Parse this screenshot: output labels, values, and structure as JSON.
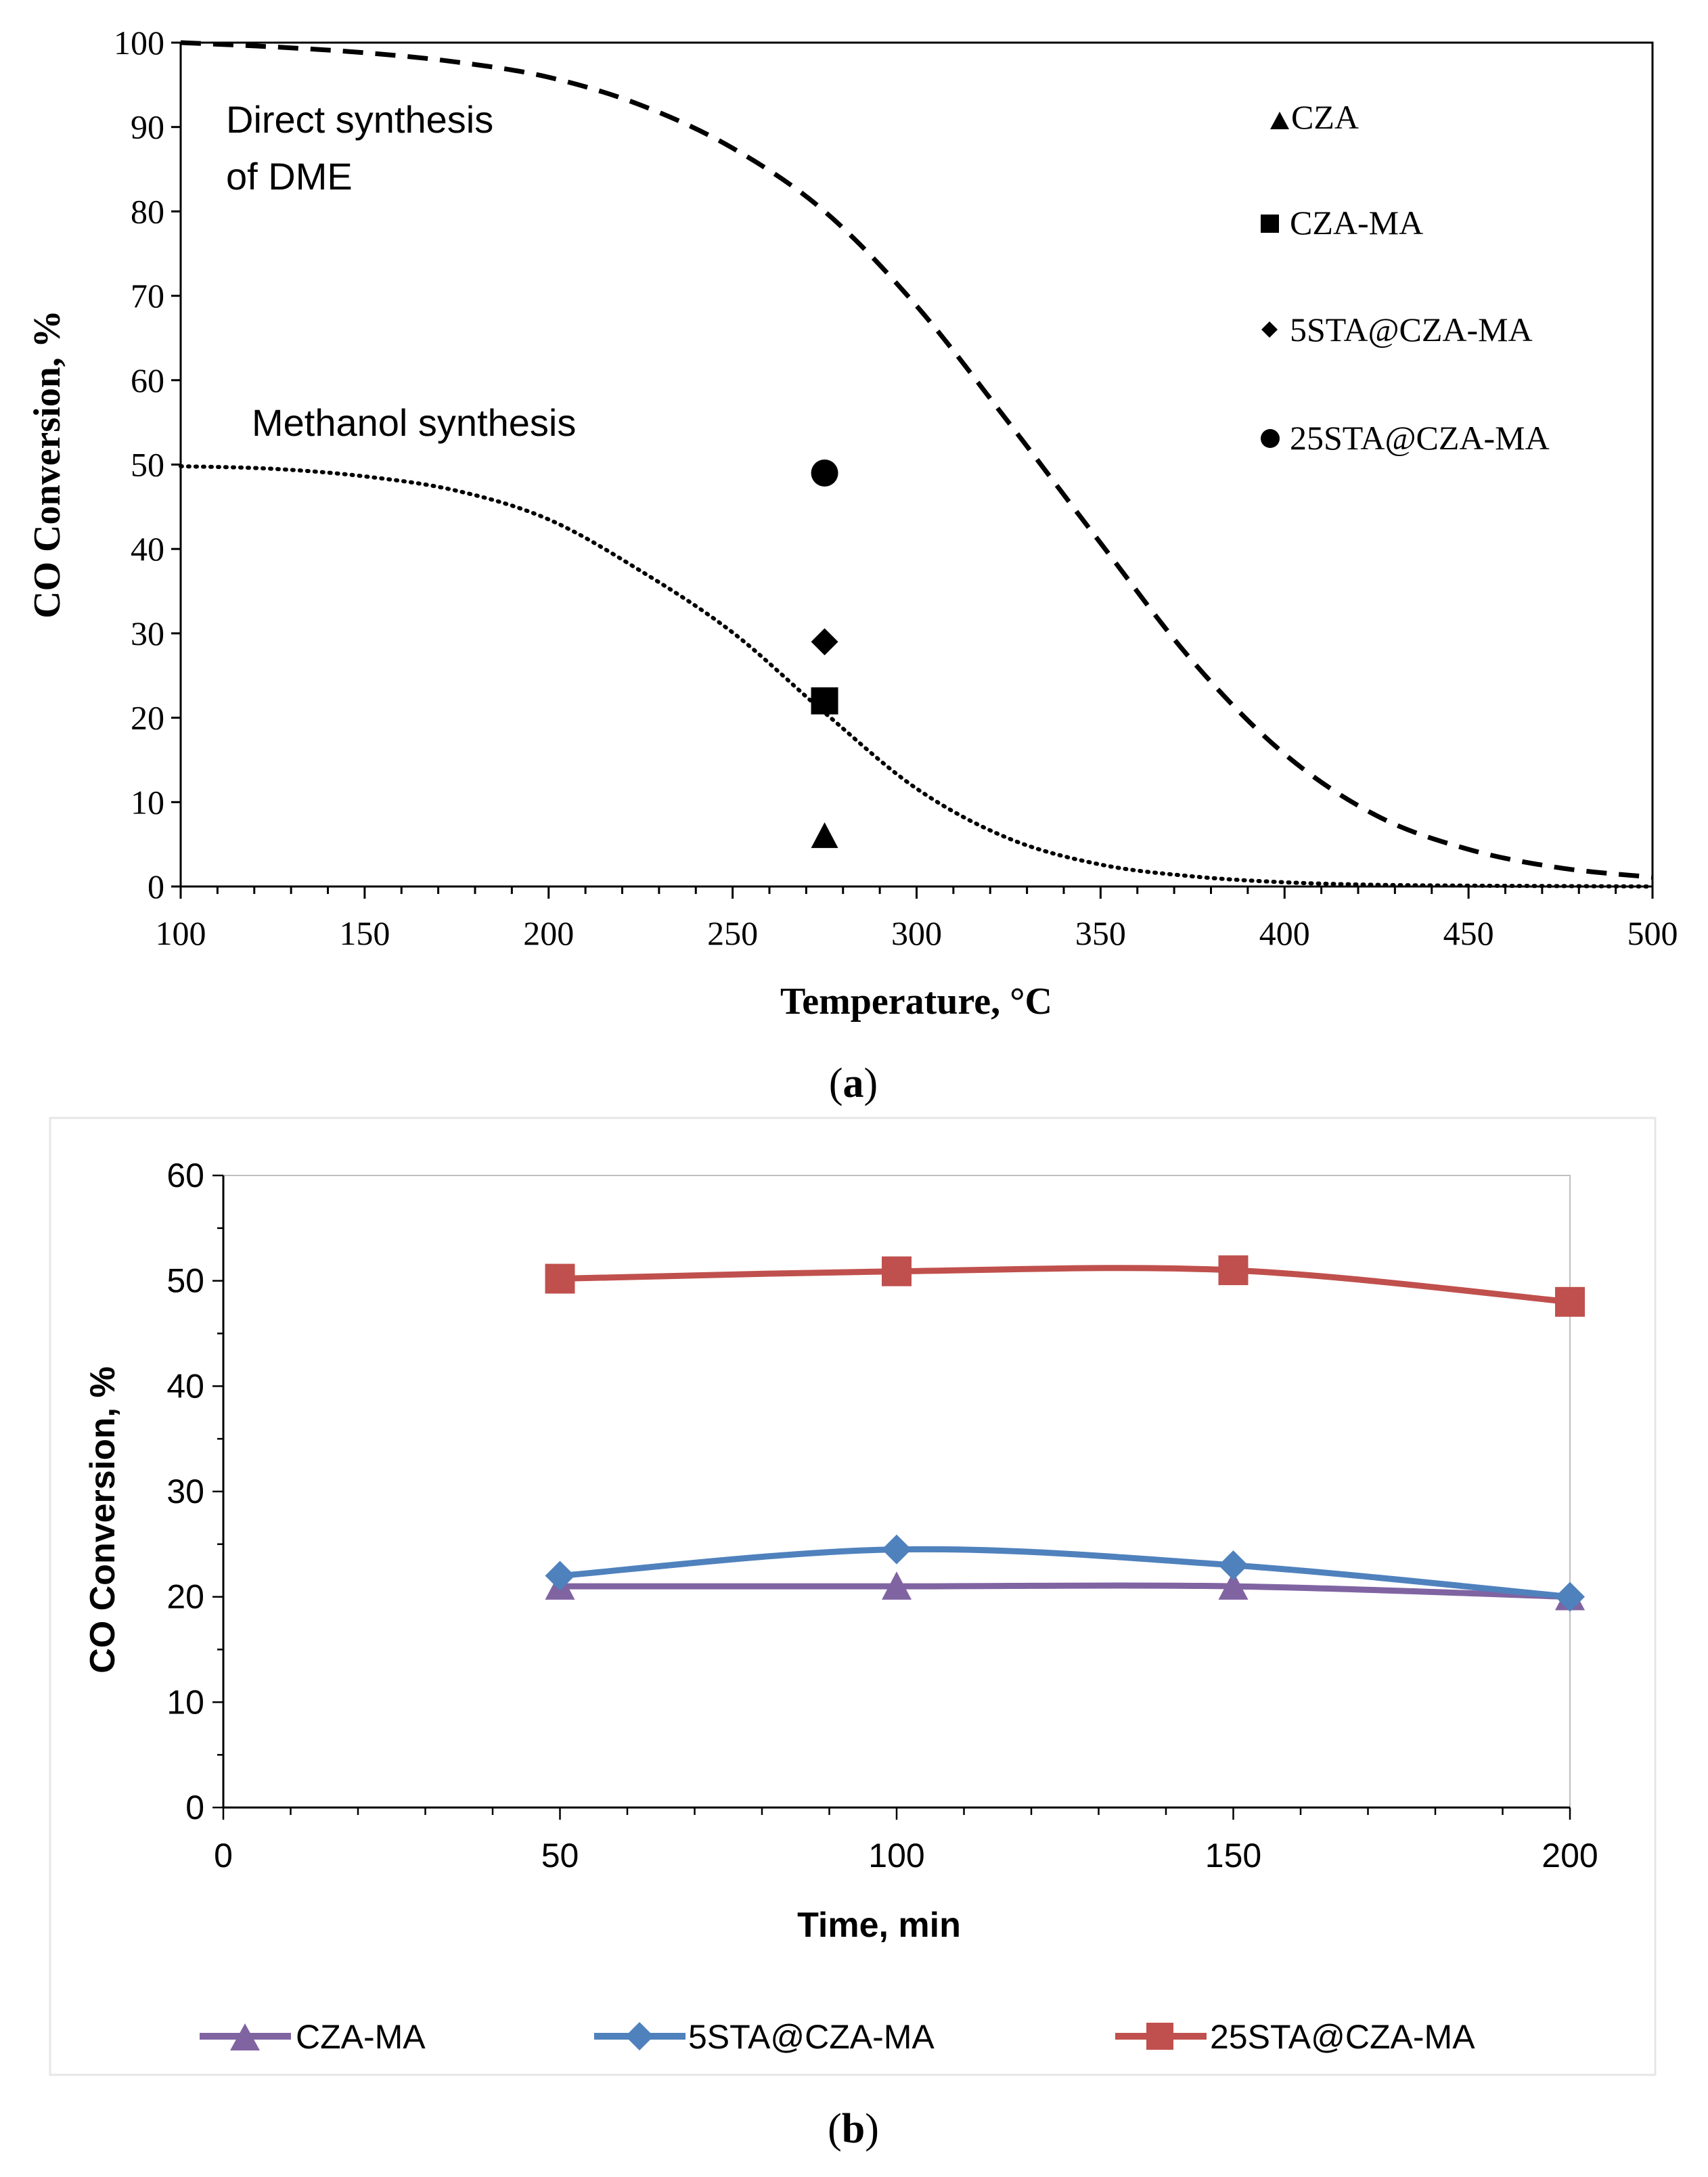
{
  "chart_data": [
    {
      "id": "a",
      "type": "scatter",
      "caption": {
        "open": "(",
        "letter": "a",
        "close": ")"
      },
      "xlabel": "Temperature, °C",
      "ylabel": "CO Conversion, %",
      "xlim": [
        100,
        500
      ],
      "ylim": [
        0,
        100
      ],
      "x_ticks": [
        100,
        150,
        200,
        250,
        300,
        350,
        400,
        450,
        500
      ],
      "y_ticks": [
        0,
        10,
        20,
        30,
        40,
        50,
        60,
        70,
        80,
        90,
        100
      ],
      "annotations": [
        {
          "key": "dme1",
          "text": "Direct synthesis"
        },
        {
          "key": "dme2",
          "text": "of DME"
        },
        {
          "key": "meoh",
          "text": "Methanol synthesis"
        }
      ],
      "curves": [
        {
          "name": "Direct synthesis of DME",
          "style": "dashed",
          "x": [
            100,
            125,
            150,
            175,
            200,
            225,
            250,
            275,
            300,
            325,
            350,
            375,
            400,
            425,
            450,
            475,
            500
          ],
          "y": [
            100,
            99.5,
            98.8,
            97.7,
            95.9,
            92.6,
            87.5,
            80,
            68.8,
            55,
            40.7,
            26.7,
            15.7,
            8.4,
            4.4,
            2.2,
            1.1
          ]
        },
        {
          "name": "Methanol synthesis",
          "style": "dotted",
          "x": [
            100,
            125,
            150,
            175,
            200,
            225,
            250,
            275,
            300,
            325,
            350,
            375,
            400,
            425,
            450,
            475,
            500
          ],
          "y": [
            49.8,
            49.5,
            48.6,
            46.9,
            43.5,
            37.4,
            30.1,
            20.6,
            11.6,
            5.7,
            2.6,
            1.2,
            0.5,
            0.2,
            0.1,
            0.05,
            0
          ]
        }
      ],
      "series": [
        {
          "name": "CZA",
          "marker": "triangle",
          "x": 275,
          "y": 6
        },
        {
          "name": "CZA-MA",
          "marker": "square",
          "x": 275,
          "y": 22
        },
        {
          "name": "5STA@CZA-MA",
          "marker": "diamond",
          "x": 275,
          "y": 29
        },
        {
          "name": "25STA@CZA-MA",
          "marker": "circle",
          "x": 275,
          "y": 49
        }
      ]
    },
    {
      "id": "b",
      "type": "line",
      "caption": {
        "open": "(",
        "letter": "b",
        "close": ")"
      },
      "xlabel": "Time, min",
      "ylabel": "CO Conversion, %",
      "xlim": [
        0,
        200
      ],
      "ylim": [
        0,
        60
      ],
      "x_ticks": [
        0,
        50,
        100,
        150,
        200
      ],
      "y_ticks": [
        0,
        10,
        20,
        30,
        40,
        50,
        60
      ],
      "x": [
        50,
        100,
        150,
        200
      ],
      "legend_position": "bottom",
      "series": [
        {
          "name": "CZA-MA",
          "marker": "triangle",
          "color": "#8064A2",
          "values": [
            21,
            21,
            21,
            20
          ]
        },
        {
          "name": "5STA@CZA-MA",
          "marker": "diamond",
          "color": "#4F81BD",
          "values": [
            22,
            24.5,
            23,
            20
          ]
        },
        {
          "name": "25STA@CZA-MA",
          "marker": "square",
          "color": "#C0504D",
          "values": [
            50.2,
            50.9,
            51,
            48
          ]
        }
      ]
    }
  ]
}
